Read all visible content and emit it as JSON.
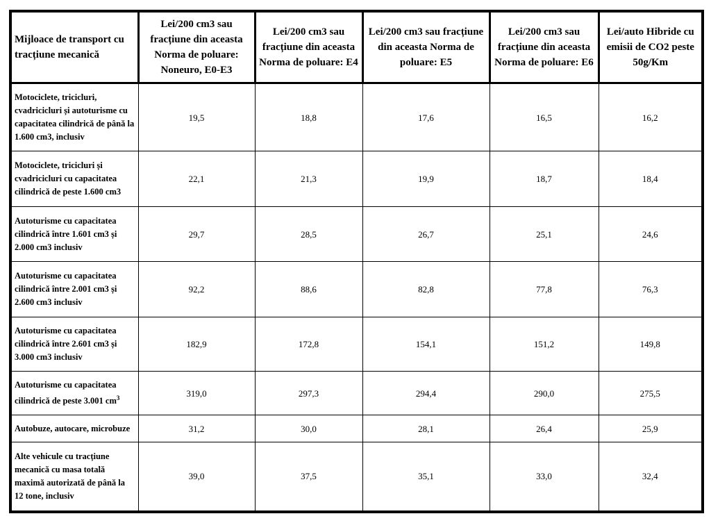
{
  "table": {
    "headers": [
      "Mijloace de transport cu tracțiune mecanică",
      "Lei/200 cm3 sau fracțiune din aceasta Norma de poluare: Noneuro, E0-E3",
      "Lei/200 cm3 sau fracțiune din aceasta Norma de poluare: E4",
      "Lei/200 cm3 sau fracțiune din aceasta Norma de poluare: E5",
      "Lei/200 cm3 sau fracțiune din aceasta Norma de poluare: E6",
      "Lei/auto Hibride cu emisii de CO2 peste 50g/Km"
    ],
    "rows": [
      {
        "label": "Motociclete, tricicluri, cvadricicluri și autoturisme cu capacitatea cilindrică de până la 1.600 cm3, inclusiv",
        "values": [
          "19,5",
          "18,8",
          "17,6",
          "16,5",
          "16,2"
        ]
      },
      {
        "label": "Motociclete, tricicluri  și cvadricicluri cu capacitatea cilindrică de peste 1.600 cm3",
        "values": [
          "22,1",
          "21,3",
          "19,9",
          "18,7",
          "18,4"
        ]
      },
      {
        "label": "Autoturisme cu capacitatea cilindrică între 1.601 cm3 și 2.000 cm3 inclusiv",
        "values": [
          "29,7",
          "28,5",
          "26,7",
          "25,1",
          "24,6"
        ]
      },
      {
        "label": "Autoturisme cu capacitatea cilindrică între 2.001 cm3 și 2.600 cm3 inclusiv",
        "values": [
          "92,2",
          "88,6",
          "82,8",
          "77,8",
          "76,3"
        ]
      },
      {
        "label": "Autoturisme cu capacitatea cilindrică între 2.601 cm3 și 3.000 cm3 inclusiv",
        "values": [
          "182,9",
          "172,8",
          "154,1",
          "151,2",
          "149,8"
        ]
      },
      {
        "label": "Autoturisme cu capacitatea cilindrică de peste 3.001 cm",
        "label_sup": "3",
        "values": [
          "319,0",
          "297,3",
          "294,4",
          "290,0",
          "275,5"
        ]
      },
      {
        "label": "Autobuze, autocare, microbuze",
        "values": [
          "31,2",
          "30,0",
          "28,1",
          "26,4",
          "25,9"
        ]
      },
      {
        "label": "Alte vehicule cu tracțiune mecanică cu masa totală maximă autorizată de până la 12 tone, inclusiv",
        "values": [
          "39,0",
          "37,5",
          "35,1",
          "33,0",
          "32,4"
        ]
      }
    ]
  }
}
